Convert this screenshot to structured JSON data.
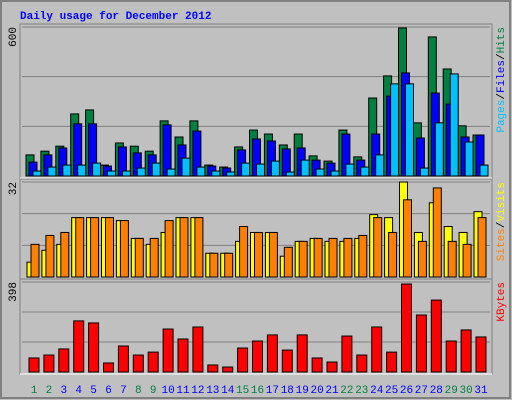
{
  "chart_data": [
    {
      "type": "bar",
      "title": "Daily usage for December 2012",
      "title_color": "#0000ff",
      "ylim": [
        0,
        600
      ],
      "yticks": [
        600
      ],
      "grid": true,
      "legend_separator": "/",
      "series": [
        {
          "name": "Hits",
          "color": "#008040",
          "values": [
            85,
            100,
            120,
            250,
            266,
            44,
            133,
            120,
            100,
            222,
            157,
            222,
            44,
            36,
            117,
            185,
            169,
            125,
            169,
            81,
            60,
            185,
            77,
            314,
            403,
            596,
            214,
            560,
            431,
            202,
            165
          ]
        },
        {
          "name": "Files",
          "color": "#0000ff",
          "values": [
            56,
            85,
            113,
            210,
            210,
            40,
            117,
            93,
            85,
            206,
            125,
            181,
            40,
            32,
            105,
            149,
            141,
            109,
            113,
            64,
            52,
            169,
            64,
            169,
            322,
            415,
            153,
            334,
            290,
            157,
            165
          ]
        },
        {
          "name": "Pages",
          "color": "#00c0ff",
          "values": [
            20,
            36,
            44,
            44,
            52,
            20,
            20,
            32,
            52,
            28,
            72,
            36,
            20,
            16,
            52,
            48,
            60,
            16,
            64,
            28,
            20,
            48,
            36,
            85,
            371,
            371,
            32,
            214,
            411,
            137,
            44
          ]
        }
      ]
    },
    {
      "type": "bar",
      "ylim": [
        0,
        32
      ],
      "yticks": [
        32
      ],
      "grid": true,
      "legend_separator": "/",
      "series": [
        {
          "name": "Visits",
          "color": "#ffff00",
          "values": [
            5,
            9,
            11,
            20,
            20,
            20,
            19,
            13,
            11,
            15,
            20,
            20,
            8,
            8,
            12,
            15,
            15,
            7,
            12,
            13,
            12,
            12,
            13,
            21,
            20,
            32,
            15,
            25,
            17,
            15,
            22
          ]
        },
        {
          "name": "Sites",
          "color": "#ff8000",
          "values": [
            11,
            14,
            15,
            20,
            20,
            20,
            19,
            13,
            13,
            19,
            20,
            20,
            8,
            8,
            17,
            15,
            15,
            10,
            12,
            13,
            13,
            13,
            14,
            20,
            15,
            26,
            12,
            30,
            12,
            11,
            20
          ]
        }
      ]
    },
    {
      "type": "bar",
      "ylim": [
        0,
        398
      ],
      "yticks": [
        398
      ],
      "grid": true,
      "categories": [
        "1",
        "2",
        "3",
        "4",
        "5",
        "6",
        "7",
        "8",
        "9",
        "10",
        "11",
        "12",
        "13",
        "14",
        "15",
        "16",
        "17",
        "18",
        "19",
        "20",
        "21",
        "22",
        "23",
        "24",
        "25",
        "26",
        "27",
        "28",
        "29",
        "30",
        "31"
      ],
      "category_color": "#0000ff",
      "weekend_color": "#008040",
      "weekend": [
        0,
        1,
        7,
        8,
        14,
        15,
        21,
        22,
        28,
        29
      ],
      "series": [
        {
          "name": "KBytes",
          "color": "#ff0000",
          "values": [
            62,
            75,
            102,
            226,
            217,
            40,
            115,
            75,
            88,
            190,
            146,
            199,
            31,
            22,
            106,
            137,
            164,
            97,
            164,
            62,
            44,
            159,
            75,
            199,
            88,
            389,
            252,
            318,
            137,
            186,
            155
          ]
        }
      ]
    }
  ]
}
